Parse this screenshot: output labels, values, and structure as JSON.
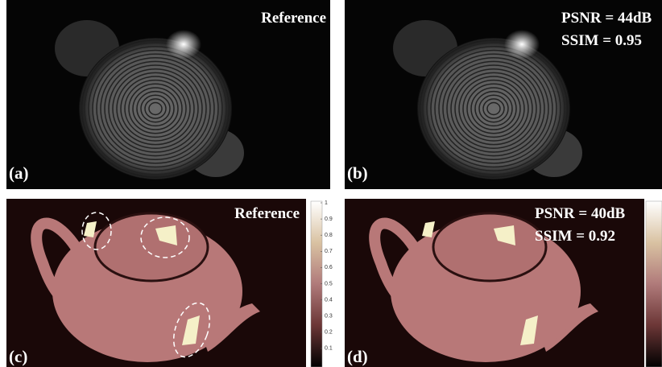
{
  "panels": [
    {
      "tag": "(a)",
      "annotations": [
        "Reference"
      ]
    },
    {
      "tag": "(b)",
      "annotations": [
        "PSNR = 44dB",
        "SSIM = 0.95"
      ]
    },
    {
      "tag": "(c)",
      "annotations": [
        "Reference"
      ]
    },
    {
      "tag": "(d)",
      "annotations": [
        "PSNR = 40dB",
        "SSIM = 0.92"
      ]
    }
  ],
  "colorbar": {
    "ticks": [
      0.1,
      0.2,
      0.3,
      0.4,
      0.5,
      0.6,
      0.7,
      0.8,
      0.9,
      1
    ]
  }
}
